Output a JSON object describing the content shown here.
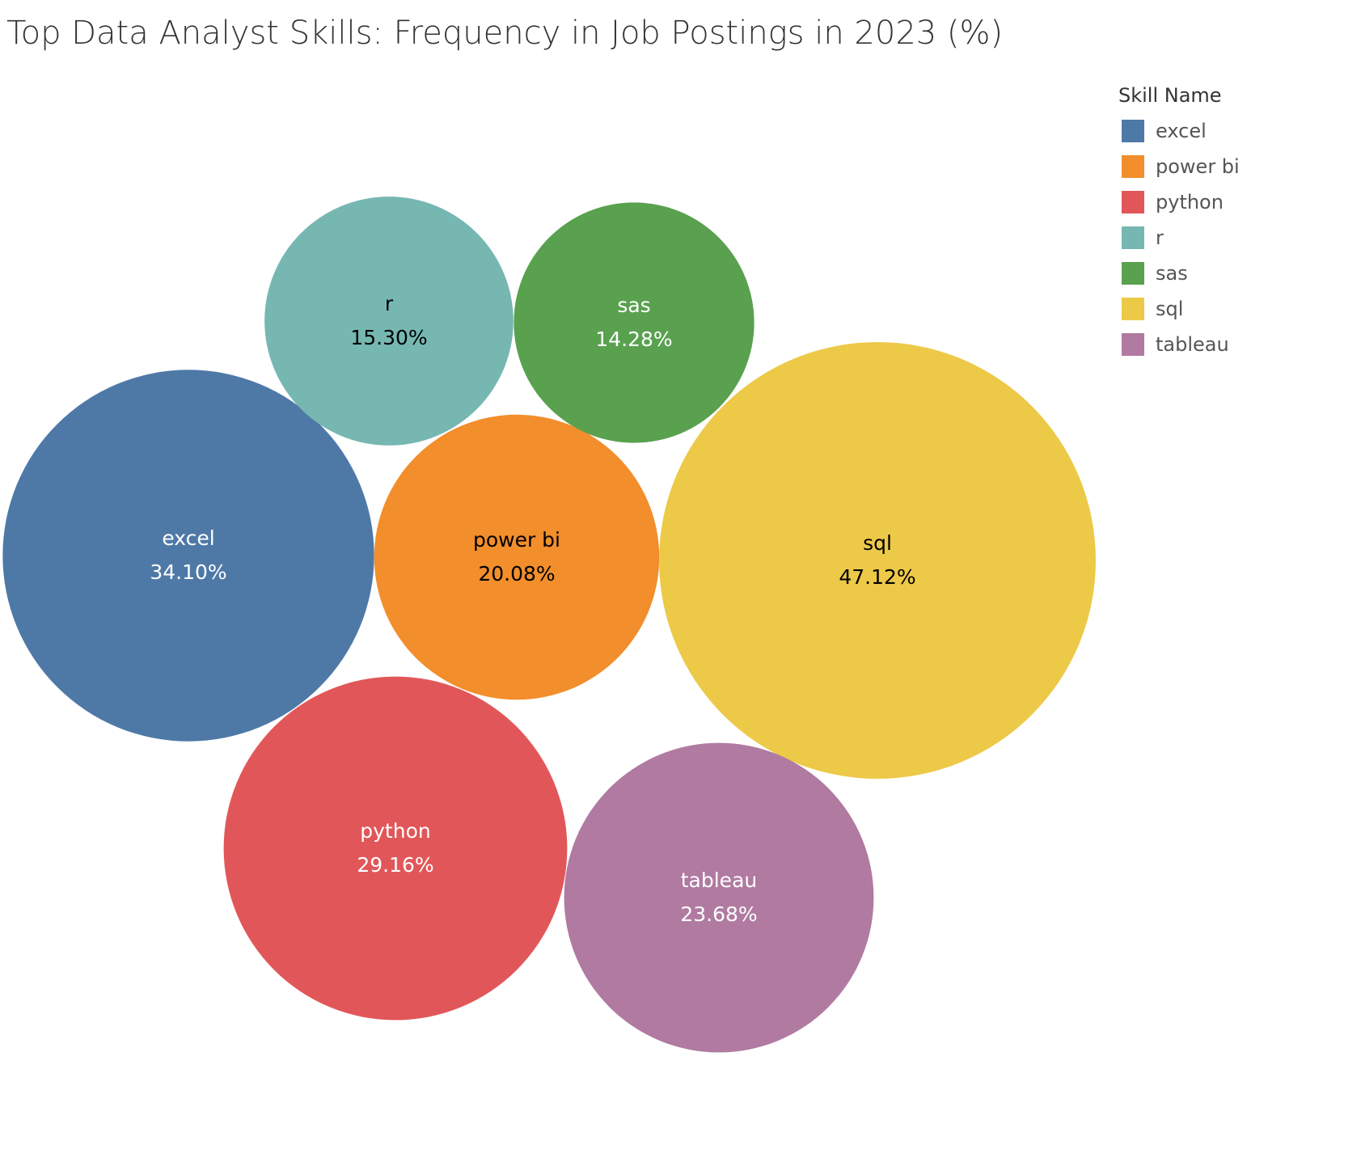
{
  "chart_data": {
    "type": "bubble",
    "title": "Top Data Analyst Skills: Frequency in Job Postings in 2023 (%)",
    "legend_title": "Skill Name",
    "legend_position": "top-right",
    "series": [
      {
        "name": "excel",
        "value": 34.1,
        "value_label": "34.10%",
        "color": "#4e79a7",
        "text_color": "#ffffff"
      },
      {
        "name": "power bi",
        "value": 20.08,
        "value_label": "20.08%",
        "color": "#f28e2b",
        "text_color": "#000000"
      },
      {
        "name": "python",
        "value": 29.16,
        "value_label": "29.16%",
        "color": "#e15759",
        "text_color": "#ffffff"
      },
      {
        "name": "r",
        "value": 15.3,
        "value_label": "15.30%",
        "color": "#76b7b2",
        "text_color": "#000000"
      },
      {
        "name": "sas",
        "value": 14.28,
        "value_label": "14.28%",
        "color": "#59a14f",
        "text_color": "#ffffff"
      },
      {
        "name": "sql",
        "value": 47.12,
        "value_label": "47.12%",
        "color": "#edc948",
        "text_color": "#000000"
      },
      {
        "name": "tableau",
        "value": 23.68,
        "value_label": "23.68%",
        "color": "#b07aa1",
        "text_color": "#ffffff"
      }
    ]
  }
}
